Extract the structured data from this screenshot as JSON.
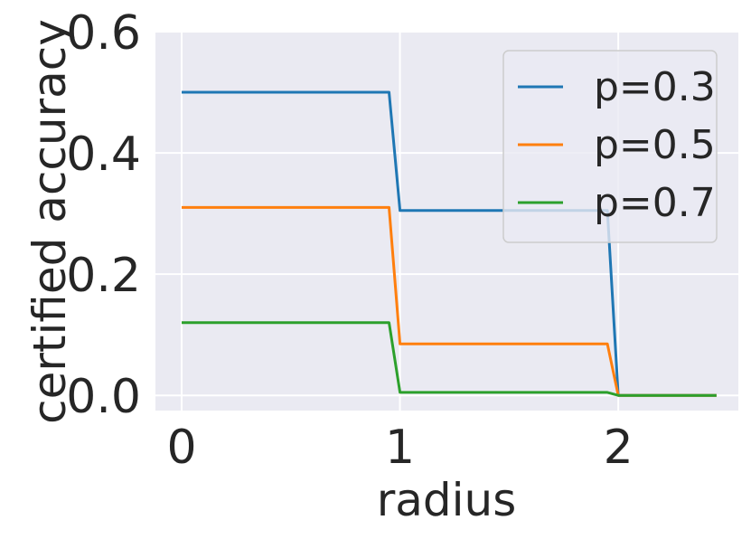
{
  "chart_data": {
    "type": "line",
    "title": "",
    "xlabel": "radius",
    "ylabel": "certified accuracy",
    "xlim": [
      -0.12,
      2.55
    ],
    "ylim": [
      -0.025,
      0.6
    ],
    "x_ticks": [
      0,
      1,
      2
    ],
    "y_ticks": [
      0.0,
      0.2,
      0.4,
      0.6
    ],
    "x_tick_labels": [
      "0",
      "1",
      "2"
    ],
    "y_tick_labels": [
      "0.0",
      "0.2",
      "0.4",
      "0.6"
    ],
    "grid": true,
    "legend_position": "top-right",
    "series": [
      {
        "name": "p=0.3",
        "color": "#1f77b4",
        "x": [
          0,
          0.95,
          1.0,
          1.95,
          2.0,
          2.45
        ],
        "y": [
          0.5,
          0.5,
          0.305,
          0.305,
          0.0,
          0.0
        ]
      },
      {
        "name": "p=0.5",
        "color": "#ff7f0e",
        "x": [
          0,
          0.95,
          1.0,
          1.95,
          2.0,
          2.45
        ],
        "y": [
          0.31,
          0.31,
          0.085,
          0.085,
          0.0,
          0.0
        ]
      },
      {
        "name": "p=0.7",
        "color": "#2ca02c",
        "x": [
          0,
          0.95,
          1.0,
          1.95,
          2.0,
          2.45
        ],
        "y": [
          0.12,
          0.12,
          0.005,
          0.005,
          0.0,
          0.0
        ]
      }
    ]
  }
}
